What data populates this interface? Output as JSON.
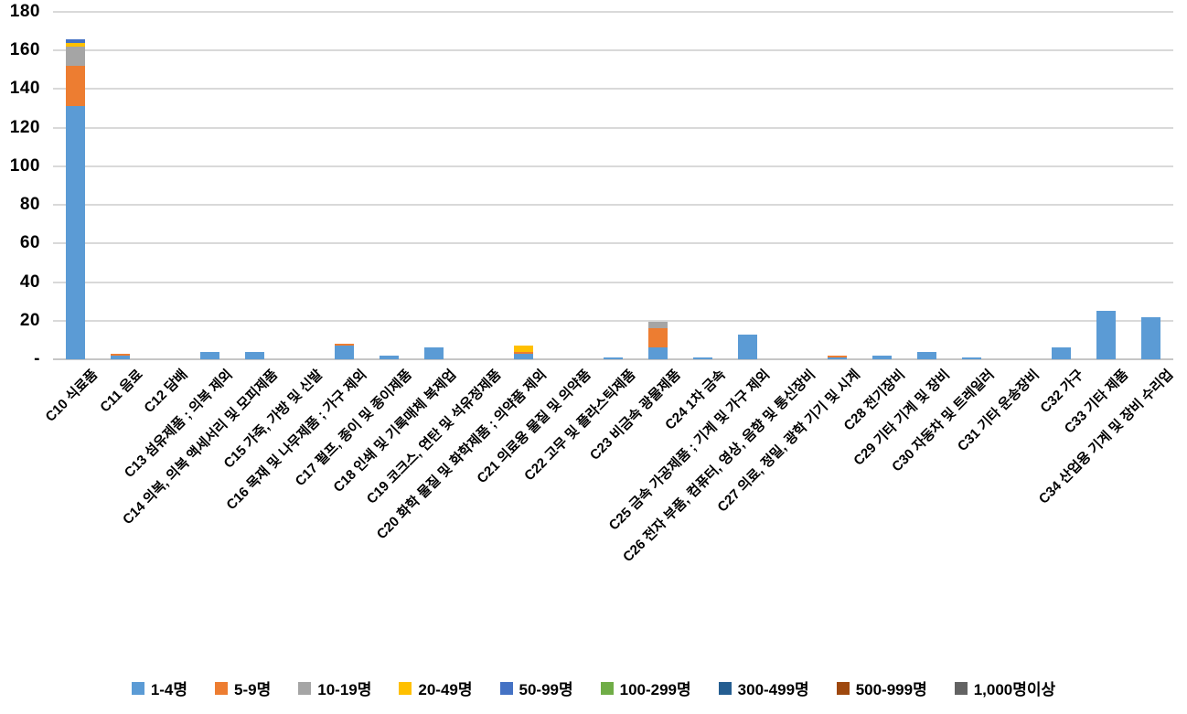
{
  "chart_data": {
    "type": "bar",
    "stacked": true,
    "title": "",
    "xlabel": "",
    "ylabel": "",
    "ylim": [
      0,
      180
    ],
    "ytick_step": 20,
    "zero_tick_label": "-",
    "grid": true,
    "legend_position": "bottom",
    "categories": [
      "C10 식료품",
      "C11 음료",
      "C12 담배",
      "C13 섬유제품 ; 의복 제외",
      "C14 의복, 의복 액세서리 및 모피제품",
      "C15 가죽, 가방 및 신발",
      "C16 목재 및 나무제품 ; 가구 제외",
      "C17 펄프, 종이 및 종이제품",
      "C18 인쇄 및 기록매체 복제업",
      "C19 코크스, 연탄 및 석유정제품",
      "C20 화학 물질 및 화학제품 ; 의약품 제외",
      "C21 의료용 물질 및 의약품",
      "C22 고무 및 플라스틱제품",
      "C23 비금속 광물제품",
      "C24 1차 금속",
      "C25 금속 가공제품 ; 기계 및 가구 제외",
      "C26 전자 부품, 컴퓨터, 영상, 음향 및 통신장비",
      "C27 의료, 정밀, 광학 기기 및 시계",
      "C28 전기장비",
      "C29 기타 기계 및 장비",
      "C30 자동차 및 트레일러",
      "C31 기타 운송장비",
      "C32 가구",
      "C33 기타 제품",
      "C34 산업용 기계 및 장비 수리업"
    ],
    "series": [
      {
        "name": "1-4명",
        "color": "#5B9BD5",
        "values": [
          131,
          2,
          0,
          4,
          4,
          0,
          7,
          2,
          6,
          0,
          3,
          0,
          1,
          6,
          1,
          13,
          0,
          1,
          2,
          4,
          1,
          0,
          6,
          25,
          22
        ]
      },
      {
        "name": "5-9명",
        "color": "#ED7D31",
        "values": [
          21,
          1,
          0,
          0,
          0,
          0,
          1,
          0,
          0,
          0,
          1,
          0,
          0,
          10,
          0,
          0,
          0,
          1,
          0,
          0,
          0,
          0,
          0,
          0,
          0
        ]
      },
      {
        "name": "10-19명",
        "color": "#A5A5A5",
        "values": [
          10,
          0,
          0,
          0,
          0,
          0,
          0,
          0,
          0,
          0,
          0,
          0,
          0,
          3.5,
          0,
          0,
          0,
          0,
          0,
          0,
          0,
          0,
          0,
          0,
          0
        ]
      },
      {
        "name": "20-49명",
        "color": "#FFC000",
        "values": [
          2,
          0,
          0,
          0,
          0,
          0,
          0,
          0,
          0,
          0,
          3,
          0,
          0,
          0,
          0,
          0,
          0,
          0,
          0,
          0,
          0,
          0,
          0,
          0,
          0
        ]
      },
      {
        "name": "50-99명",
        "color": "#4472C4",
        "values": [
          2,
          0,
          0,
          0,
          0,
          0,
          0,
          0,
          0,
          0,
          0,
          0,
          0,
          0,
          0,
          0,
          0,
          0,
          0,
          0,
          0,
          0,
          0,
          0,
          0
        ]
      },
      {
        "name": "100-299명",
        "color": "#70AD47",
        "values": [
          0,
          0,
          0,
          0,
          0,
          0,
          0,
          0,
          0,
          0,
          0,
          0,
          0,
          0,
          0,
          0,
          0,
          0,
          0,
          0,
          0,
          0,
          0,
          0,
          0
        ]
      },
      {
        "name": "300-499명",
        "color": "#255E91",
        "values": [
          0,
          0,
          0,
          0,
          0,
          0,
          0,
          0,
          0,
          0,
          0,
          0,
          0,
          0,
          0,
          0,
          0,
          0,
          0,
          0,
          0,
          0,
          0,
          0,
          0
        ]
      },
      {
        "name": "500-999명",
        "color": "#9E480E",
        "values": [
          0,
          0,
          0,
          0,
          0,
          0,
          0,
          0,
          0,
          0,
          0,
          0,
          0,
          0,
          0,
          0,
          0,
          0,
          0,
          0,
          0,
          0,
          0,
          0,
          0
        ]
      },
      {
        "name": "1,000명이상",
        "color": "#636363",
        "values": [
          0,
          0,
          0,
          0,
          0,
          0,
          0,
          0,
          0,
          0,
          0,
          0,
          0,
          0,
          0,
          0,
          0,
          0,
          0,
          0,
          0,
          0,
          0,
          0,
          0
        ]
      }
    ]
  }
}
